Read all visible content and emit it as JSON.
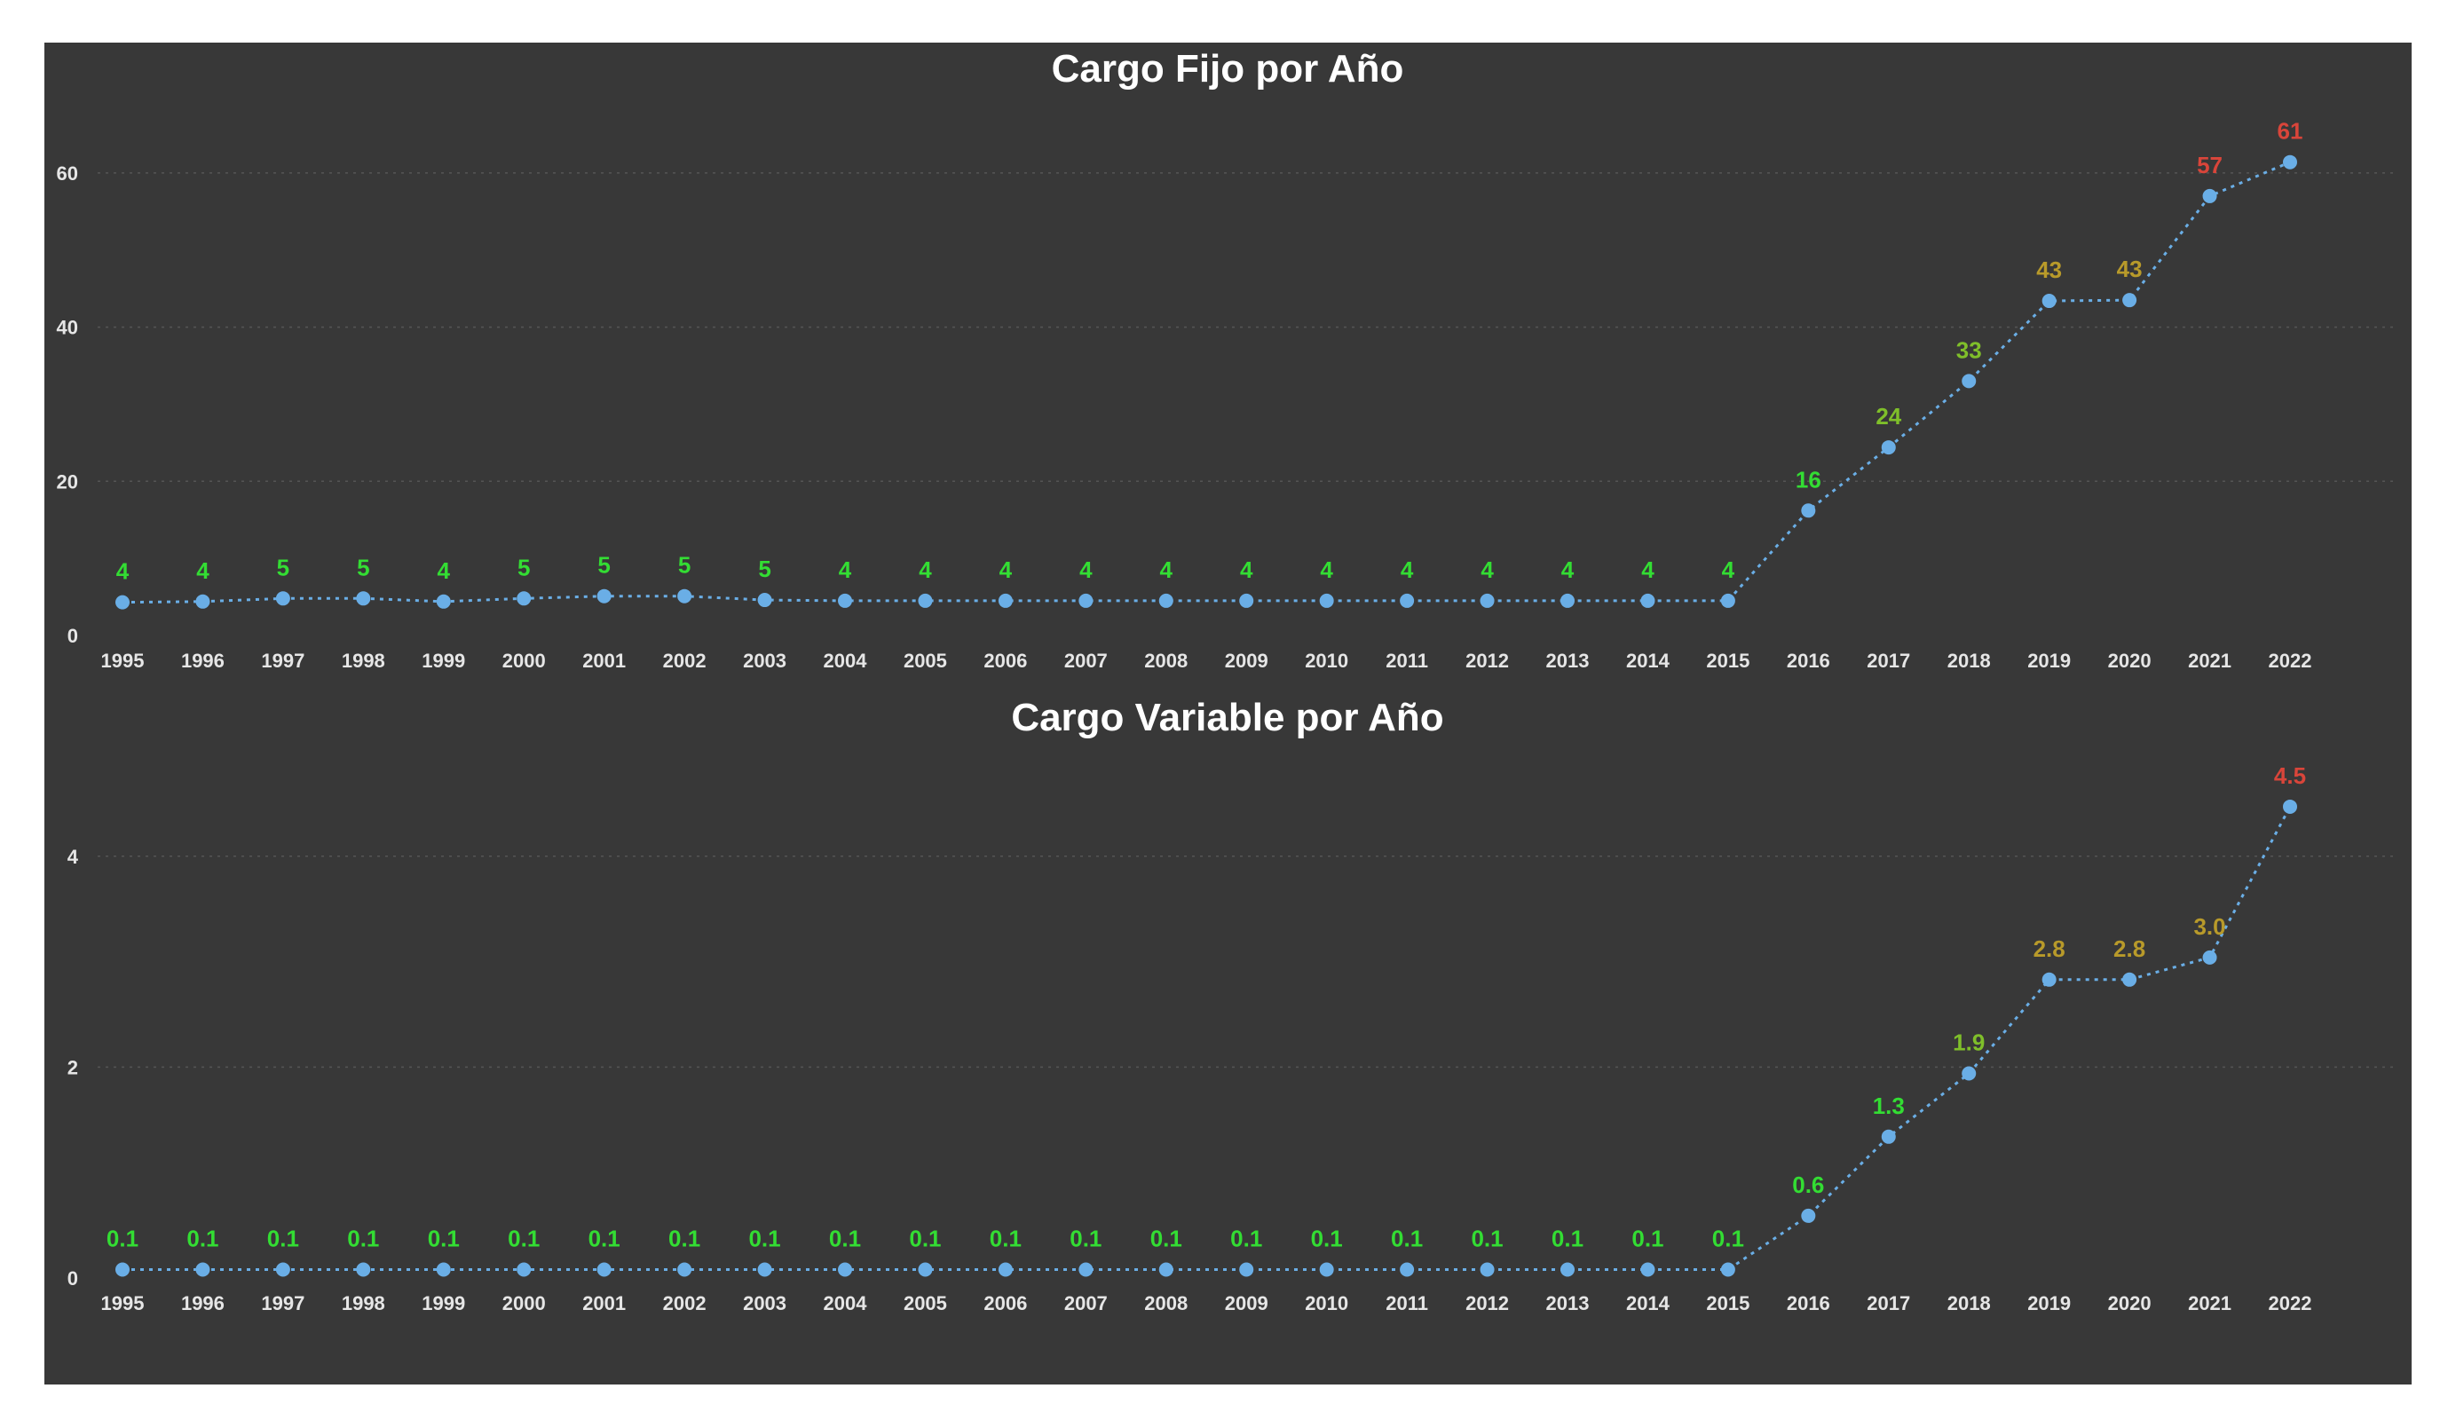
{
  "colors": {
    "background": "#383838",
    "series": "#6aaee6",
    "low": "#33dd33",
    "mid_low": "#7fbf2a",
    "mid": "#b89a2a",
    "high": "#d9453a"
  },
  "chart_data": [
    {
      "type": "line",
      "title": "Cargo Fijo por Año",
      "x": [
        "1995",
        "1996",
        "1997",
        "1998",
        "1999",
        "2000",
        "2001",
        "2002",
        "2003",
        "2004",
        "2005",
        "2006",
        "2007",
        "2008",
        "2009",
        "2010",
        "2011",
        "2012",
        "2013",
        "2014",
        "2015",
        "2016",
        "2017",
        "2018",
        "2019",
        "2020",
        "2021",
        "2022"
      ],
      "values": [
        4.3,
        4.4,
        4.8,
        4.8,
        4.4,
        4.8,
        5.1,
        5.1,
        4.6,
        4.5,
        4.5,
        4.5,
        4.5,
        4.5,
        4.5,
        4.5,
        4.5,
        4.5,
        4.5,
        4.5,
        4.5,
        16.2,
        24.4,
        33.0,
        43.4,
        43.5,
        57.0,
        61.4
      ],
      "labels": [
        "4",
        "4",
        "5",
        "5",
        "4",
        "5",
        "5",
        "5",
        "5",
        "4",
        "4",
        "4",
        "4",
        "4",
        "4",
        "4",
        "4",
        "4",
        "4",
        "4",
        "4",
        "16",
        "24",
        "33",
        "43",
        "43",
        "57",
        "61"
      ],
      "yticks": [
        "0",
        "20",
        "40",
        "60"
      ],
      "ytick_values": [
        0,
        20,
        40,
        60
      ],
      "ylim": [
        0,
        70
      ],
      "grid": true,
      "xlabel": "",
      "ylabel": ""
    },
    {
      "type": "line",
      "title": "Cargo Variable por Año",
      "x": [
        "1995",
        "1996",
        "1997",
        "1998",
        "1999",
        "2000",
        "2001",
        "2002",
        "2003",
        "2004",
        "2005",
        "2006",
        "2007",
        "2008",
        "2009",
        "2010",
        "2011",
        "2012",
        "2013",
        "2014",
        "2015",
        "2016",
        "2017",
        "2018",
        "2019",
        "2020",
        "2021",
        "2022"
      ],
      "values": [
        0.08,
        0.08,
        0.08,
        0.08,
        0.08,
        0.08,
        0.08,
        0.08,
        0.08,
        0.08,
        0.08,
        0.08,
        0.08,
        0.08,
        0.08,
        0.08,
        0.08,
        0.08,
        0.08,
        0.08,
        0.08,
        0.59,
        1.34,
        1.94,
        2.83,
        2.83,
        3.04,
        4.47
      ],
      "labels": [
        "0.1",
        "0.1",
        "0.1",
        "0.1",
        "0.1",
        "0.1",
        "0.1",
        "0.1",
        "0.1",
        "0.1",
        "0.1",
        "0.1",
        "0.1",
        "0.1",
        "0.1",
        "0.1",
        "0.1",
        "0.1",
        "0.1",
        "0.1",
        "0.1",
        "0.6",
        "1.3",
        "1.9",
        "2.8",
        "2.8",
        "3.0",
        "4.5"
      ],
      "yticks": [
        "0",
        "2",
        "4"
      ],
      "ytick_values": [
        0,
        2,
        4
      ],
      "ylim": [
        0,
        5
      ],
      "grid": true,
      "xlabel": "",
      "ylabel": ""
    }
  ]
}
